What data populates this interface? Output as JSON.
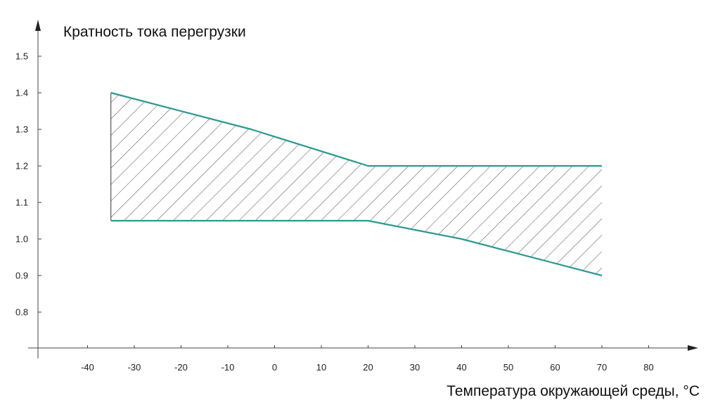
{
  "chart_data": {
    "type": "area",
    "title": "",
    "ylabel": "Кратность тока перегрузки",
    "xlabel": "Температура окружающей среды, °C",
    "xlim": [
      -50,
      95
    ],
    "ylim": [
      0.7,
      1.58
    ],
    "xticks": [
      -40,
      -30,
      -20,
      -10,
      0,
      10,
      20,
      30,
      40,
      50,
      60,
      70,
      80
    ],
    "xtick_labels": [
      "-40",
      "-30",
      "-20",
      "-10",
      "0",
      "10",
      "20",
      "30",
      "40",
      "50",
      "60",
      "70",
      "80"
    ],
    "yticks": [
      0.8,
      0.9,
      1.0,
      1.1,
      1.2,
      1.3,
      1.4,
      1.5
    ],
    "ytick_labels": [
      "0.8",
      "0.9",
      "1.0",
      "1.1",
      "1.2",
      "1.3",
      "1.4",
      "1.5"
    ],
    "grid": false,
    "hatched_band": true,
    "line_color": "#2a9a90",
    "series": [
      {
        "x": [
          -35,
          -5,
          20,
          70
        ],
        "y": [
          1.4,
          1.3,
          1.2,
          1.2
        ]
      },
      {
        "x": [
          -35,
          20,
          40,
          70
        ],
        "y": [
          1.05,
          1.05,
          1.0,
          0.9
        ]
      }
    ]
  }
}
